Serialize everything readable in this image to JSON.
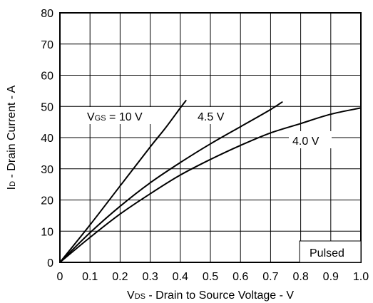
{
  "chart_data": {
    "type": "line",
    "xlabel": {
      "prefix": "V",
      "sub": "DS",
      "rest": " - Drain to Source Voltage - V"
    },
    "ylabel": {
      "prefix": "I",
      "sub": "D",
      "rest": " - Drain Current - A"
    },
    "xlim": [
      0,
      1.0
    ],
    "ylim": [
      0,
      80
    ],
    "grid": true,
    "x_ticks": [
      {
        "value": 0,
        "label": "0"
      },
      {
        "value": 0.1,
        "label": "0.1"
      },
      {
        "value": 0.2,
        "label": "0.2"
      },
      {
        "value": 0.3,
        "label": "0.3"
      },
      {
        "value": 0.4,
        "label": "0.4"
      },
      {
        "value": 0.5,
        "label": "0.5"
      },
      {
        "value": 0.6,
        "label": "0.6"
      },
      {
        "value": 0.7,
        "label": "0.7"
      },
      {
        "value": 0.8,
        "label": "0.8"
      },
      {
        "value": 0.9,
        "label": "0.9"
      },
      {
        "value": 1.0,
        "label": "1.0"
      }
    ],
    "y_ticks": [
      {
        "value": 0,
        "label": "0"
      },
      {
        "value": 10,
        "label": "10"
      },
      {
        "value": 20,
        "label": "20"
      },
      {
        "value": 30,
        "label": "30"
      },
      {
        "value": 40,
        "label": "40"
      },
      {
        "value": 50,
        "label": "50"
      },
      {
        "value": 60,
        "label": "60"
      },
      {
        "value": 70,
        "label": "70"
      },
      {
        "value": 80,
        "label": "80"
      }
    ],
    "series": [
      {
        "label_prefix": "V",
        "label_sub": "GS",
        "label_rest": " = 10 V",
        "x": [
          0,
          0.1,
          0.2,
          0.3,
          0.35,
          0.4,
          0.42
        ],
        "y": [
          0,
          12,
          24.5,
          37,
          43,
          49.5,
          52
        ]
      },
      {
        "label": "4.5 V",
        "x": [
          0,
          0.1,
          0.2,
          0.3,
          0.4,
          0.5,
          0.6,
          0.7,
          0.74
        ],
        "y": [
          0,
          9.5,
          18,
          25.5,
          32,
          38,
          43.5,
          49,
          51.5
        ]
      },
      {
        "label": "4.0 V",
        "x": [
          0,
          0.1,
          0.2,
          0.3,
          0.4,
          0.5,
          0.6,
          0.7,
          0.8,
          0.9,
          1.0
        ],
        "y": [
          0,
          8,
          15.5,
          22,
          28,
          33,
          37.5,
          41.5,
          44.5,
          47.5,
          49.5
        ]
      }
    ],
    "annotation": "Pulsed"
  }
}
